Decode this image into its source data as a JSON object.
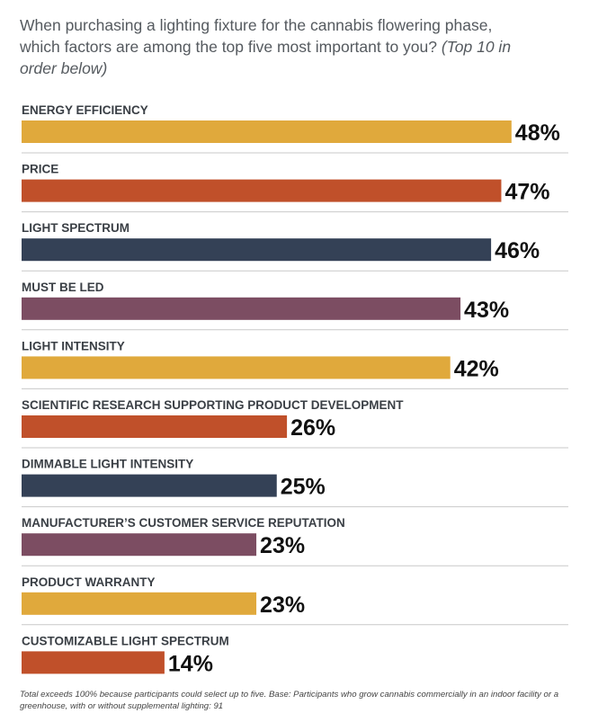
{
  "question": {
    "text": "When purchasing a lighting fixture for the cannabis flowering phase, which factors are among the top five most important to you?",
    "note": "(Top 10 in order below)"
  },
  "chart_data": {
    "type": "bar",
    "orientation": "horizontal",
    "categories": [
      "ENERGY EFFICIENCY",
      "PRICE",
      "LIGHT SPECTRUM",
      "MUST BE LED",
      "LIGHT INTENSITY",
      "SCIENTIFIC RESEARCH SUPPORTING PRODUCT DEVELOPMENT",
      "DIMMABLE LIGHT INTENSITY",
      "MANUFACTURER’S CUSTOMER SERVICE REPUTATION",
      "PRODUCT WARRANTY",
      "CUSTOMIZABLE LIGHT SPECTRUM"
    ],
    "values": [
      48,
      47,
      46,
      43,
      42,
      26,
      25,
      23,
      23,
      14
    ],
    "value_labels": [
      "48%",
      "47%",
      "46%",
      "43%",
      "42%",
      "26%",
      "25%",
      "23%",
      "23%",
      "14%"
    ],
    "bar_colors": [
      "#e0a93c",
      "#c0502a",
      "#344156",
      "#7c4d62",
      "#e0a93c",
      "#c0502a",
      "#344156",
      "#7c4d62",
      "#e0a93c",
      "#c0502a"
    ],
    "xlim": [
      0,
      100
    ],
    "grid": false,
    "legend": "none"
  },
  "footnote": "Total exceeds 100% because participants could select up to five. Base: Participants who grow cannabis commercially in an indoor facility or a greenhouse, with or without supplemental lighting: 91"
}
